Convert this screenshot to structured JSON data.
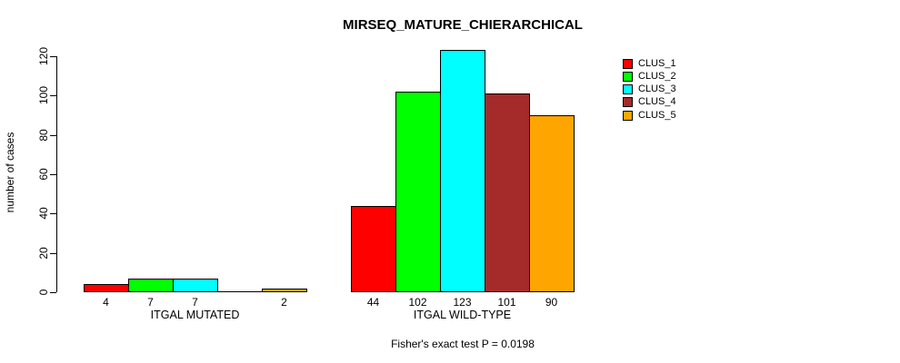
{
  "title": "MIRSEQ_MATURE_CHIERARCHICAL",
  "footer": "Fisher's exact test P = 0.0198",
  "chart_data": {
    "type": "bar",
    "title": "MIRSEQ_MATURE_CHIERARCHICAL",
    "subtitle": "Fisher's exact test P = 0.0198",
    "xlabel": "",
    "ylabel": "number of cases",
    "categories": [
      "ITGAL MUTATED",
      "ITGAL WILD-TYPE"
    ],
    "series": [
      {
        "name": "CLUS_1",
        "color": "#FF0000",
        "values": [
          4,
          44
        ]
      },
      {
        "name": "CLUS_2",
        "color": "#00FF00",
        "values": [
          7,
          102
        ]
      },
      {
        "name": "CLUS_3",
        "color": "#00FFFF",
        "values": [
          7,
          123
        ]
      },
      {
        "name": "CLUS_4",
        "color": "#A52A2A",
        "values": [
          0,
          101
        ]
      },
      {
        "name": "CLUS_5",
        "color": "#FFA500",
        "values": [
          2,
          90
        ]
      }
    ],
    "bar_value_labels": [
      [
        "4",
        "7",
        "7",
        "",
        "2"
      ],
      [
        "44",
        "102",
        "123",
        "101",
        "90"
      ]
    ],
    "yticks": [
      0,
      20,
      40,
      60,
      80,
      100,
      120
    ],
    "ylim": [
      0,
      120
    ],
    "grid": false,
    "legend_position": "top-right",
    "bar_border_color": "#000000",
    "background_color": "#FFFFFF"
  }
}
